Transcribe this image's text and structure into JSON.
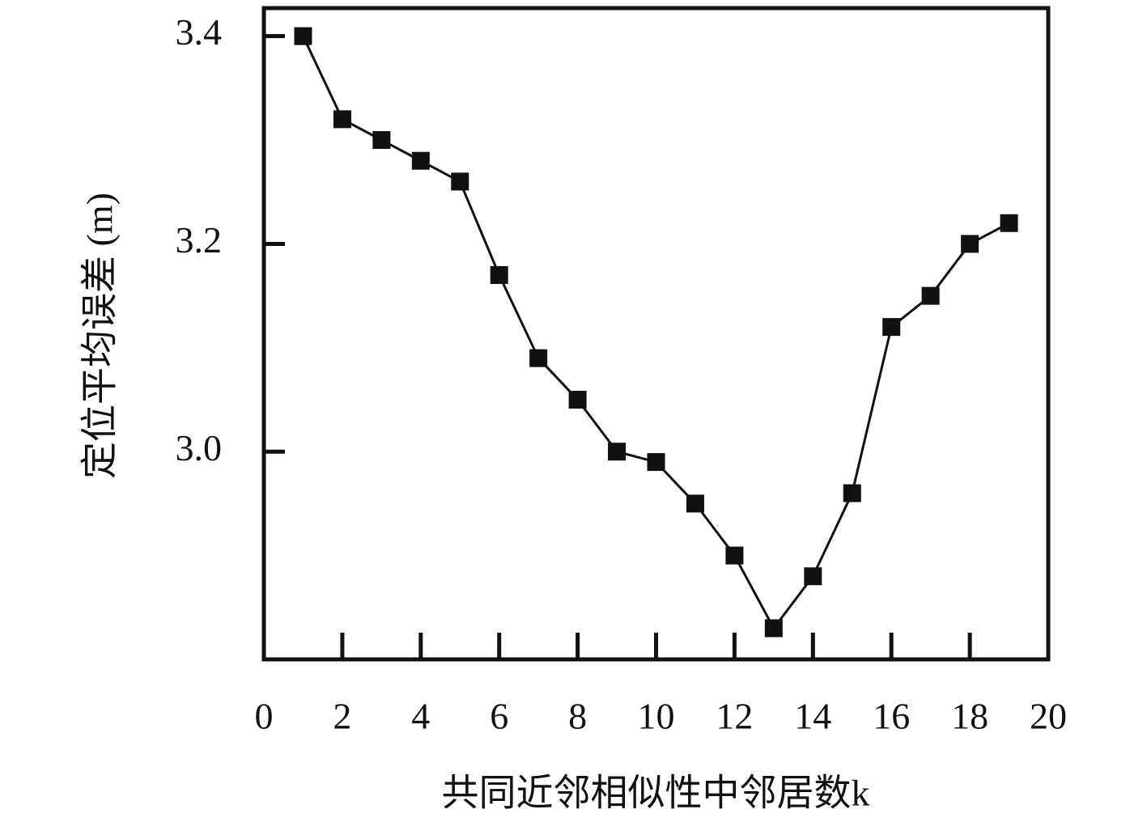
{
  "chart_data": {
    "type": "line",
    "x_label": "共同近邻相似性中邻居数k",
    "y_label": "定位平均误差 (m)",
    "x": [
      1,
      2,
      3,
      4,
      5,
      6,
      7,
      8,
      9,
      10,
      11,
      12,
      13,
      14,
      15,
      16,
      17,
      18,
      19
    ],
    "series": [
      {
        "color": "#111111",
        "values": [
          3.4,
          3.32,
          3.3,
          3.28,
          3.26,
          3.17,
          3.09,
          3.05,
          3.0,
          2.99,
          2.95,
          2.9,
          2.83,
          2.88,
          2.96,
          3.12,
          3.15,
          3.2,
          3.22
        ]
      }
    ],
    "xlim": [
      0,
      20
    ],
    "xticks": [
      0,
      2,
      4,
      6,
      8,
      10,
      12,
      14,
      16,
      18,
      20
    ],
    "ylim": [
      2.8,
      3.427
    ],
    "yticks": [
      {
        "value": 3,
        "label": "3.0"
      },
      3.2,
      3.4
    ]
  }
}
